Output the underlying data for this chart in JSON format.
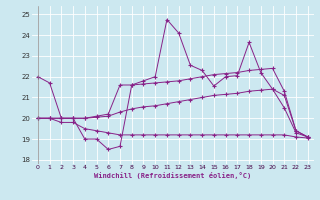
{
  "bg_color": "#cce8f0",
  "line_color": "#882288",
  "xlim": [
    -0.5,
    23.5
  ],
  "ylim": [
    17.8,
    25.4
  ],
  "yticks": [
    18,
    19,
    20,
    21,
    22,
    23,
    24,
    25
  ],
  "xticks": [
    0,
    1,
    2,
    3,
    4,
    5,
    6,
    7,
    8,
    9,
    10,
    11,
    12,
    13,
    14,
    15,
    16,
    17,
    18,
    19,
    20,
    21,
    22,
    23
  ],
  "xlabel": "Windchill (Refroidissement éolien,°C)",
  "s1_x": [
    0,
    1,
    2,
    3,
    4,
    5,
    6,
    7,
    8,
    9,
    10,
    11,
    12,
    13,
    14,
    15,
    16,
    17,
    18,
    19,
    20,
    21,
    22,
    23
  ],
  "s1_y": [
    22.0,
    21.7,
    20.0,
    20.0,
    19.0,
    19.0,
    18.5,
    18.65,
    21.6,
    21.8,
    22.0,
    24.75,
    24.1,
    22.55,
    22.3,
    21.55,
    22.0,
    22.05,
    23.65,
    22.2,
    21.4,
    20.5,
    19.3,
    19.1
  ],
  "s2_x": [
    0,
    1,
    2,
    3,
    4,
    5,
    6,
    7,
    8,
    9,
    10,
    11,
    12,
    13,
    14,
    15,
    16,
    17,
    18,
    19,
    20,
    21,
    22,
    23
  ],
  "s2_y": [
    20.0,
    20.0,
    20.0,
    20.0,
    20.0,
    20.1,
    20.2,
    21.6,
    21.6,
    21.65,
    21.7,
    21.75,
    21.8,
    21.9,
    22.0,
    22.1,
    22.15,
    22.2,
    22.3,
    22.35,
    22.4,
    21.3,
    19.4,
    19.1
  ],
  "s3_x": [
    0,
    1,
    2,
    3,
    4,
    5,
    6,
    7,
    8,
    9,
    10,
    11,
    12,
    13,
    14,
    15,
    16,
    17,
    18,
    19,
    20,
    21,
    22,
    23
  ],
  "s3_y": [
    20.0,
    20.0,
    20.0,
    20.0,
    20.0,
    20.05,
    20.1,
    20.3,
    20.45,
    20.55,
    20.6,
    20.7,
    20.8,
    20.9,
    21.0,
    21.1,
    21.15,
    21.2,
    21.3,
    21.35,
    21.4,
    21.1,
    19.4,
    19.1
  ],
  "s4_x": [
    0,
    1,
    2,
    3,
    4,
    5,
    6,
    7,
    8,
    9,
    10,
    11,
    12,
    13,
    14,
    15,
    16,
    17,
    18,
    19,
    20,
    21,
    22,
    23
  ],
  "s4_y": [
    20.0,
    20.0,
    19.8,
    19.8,
    19.5,
    19.4,
    19.3,
    19.2,
    19.2,
    19.2,
    19.2,
    19.2,
    19.2,
    19.2,
    19.2,
    19.2,
    19.2,
    19.2,
    19.2,
    19.2,
    19.2,
    19.2,
    19.1,
    19.05
  ]
}
